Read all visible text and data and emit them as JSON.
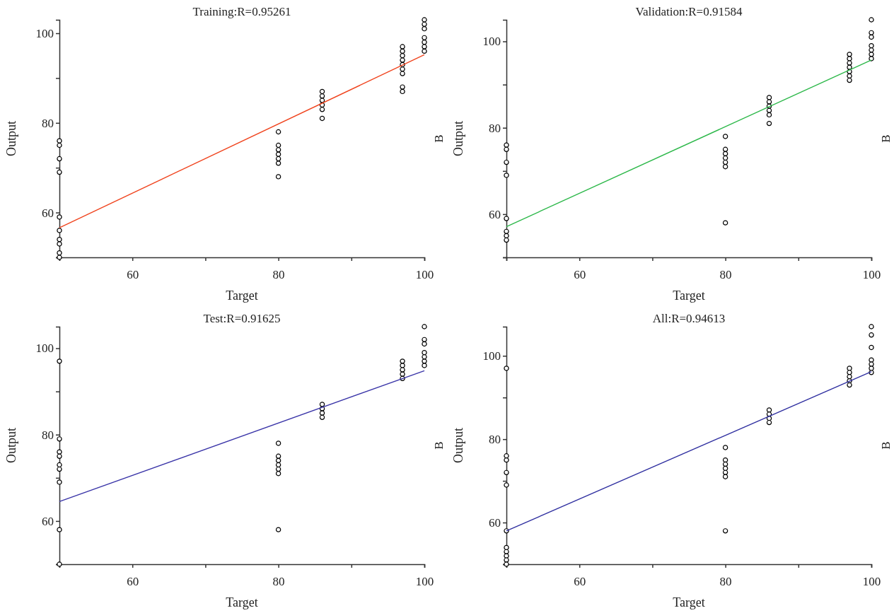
{
  "chart_data": [
    {
      "type": "scatter",
      "title": "Training:R=0.95261",
      "xlabel": "Target",
      "ylabel": "Output",
      "annotations": [
        "B"
      ],
      "xlim": [
        50,
        100
      ],
      "xticks": [
        {
          "value": 50,
          "label": null
        },
        60,
        {
          "value": 70,
          "label": null
        },
        80,
        {
          "value": 90,
          "label": null
        },
        100
      ],
      "ylim": [
        50,
        103
      ],
      "yticks": [
        {
          "value": 50,
          "label": null
        },
        60,
        {
          "value": 70,
          "label": null
        },
        80,
        {
          "value": 90,
          "label": null
        },
        100
      ],
      "series": [
        {
          "marker": "circle",
          "color": "#000000",
          "x": [
            50,
            50,
            50,
            50,
            50,
            50,
            50,
            50,
            50,
            50,
            80,
            80,
            80,
            80,
            80,
            80,
            80,
            86,
            86,
            86,
            86,
            86,
            86,
            97,
            97,
            97,
            97,
            97,
            97,
            97,
            97,
            97,
            100,
            100,
            100,
            100,
            100,
            100,
            100
          ],
          "values": [
            76,
            75,
            72,
            69,
            59,
            56,
            54,
            53,
            51,
            50,
            78,
            75,
            74,
            73,
            72,
            71,
            68,
            87,
            86,
            85,
            84,
            83,
            81,
            97,
            96,
            95,
            94,
            93,
            92,
            91,
            88,
            87,
            103,
            102,
            101,
            99,
            98,
            97,
            96
          ]
        },
        {
          "type": "line",
          "marker": "none",
          "color": "#f0441e",
          "x": [
            50,
            100
          ],
          "values": [
            56.6,
            95.2
          ]
        }
      ]
    },
    {
      "type": "scatter",
      "title": "Validation:R=0.91584",
      "xlabel": "Target",
      "ylabel": "Output",
      "annotations": [
        "B"
      ],
      "xlim": [
        50,
        100
      ],
      "xticks": [
        {
          "value": 50,
          "label": null
        },
        60,
        {
          "value": 70,
          "label": null
        },
        80,
        {
          "value": 90,
          "label": null
        },
        100
      ],
      "ylim": [
        50,
        105
      ],
      "yticks": [
        {
          "value": 50,
          "label": null
        },
        60,
        {
          "value": 70,
          "label": null
        },
        80,
        {
          "value": 90,
          "label": null
        },
        100
      ],
      "series": [
        {
          "marker": "circle",
          "color": "#000000",
          "x": [
            50,
            50,
            50,
            50,
            50,
            50,
            50,
            50,
            80,
            80,
            80,
            80,
            80,
            80,
            80,
            86,
            86,
            86,
            86,
            86,
            86,
            97,
            97,
            97,
            97,
            97,
            97,
            97,
            100,
            100,
            100,
            100,
            100,
            100,
            100
          ],
          "values": [
            76,
            75,
            72,
            69,
            59,
            56,
            55,
            54,
            78,
            75,
            74,
            73,
            72,
            71,
            58,
            87,
            86,
            85,
            84,
            83,
            81,
            97,
            96,
            95,
            94,
            93,
            92,
            91,
            105,
            102,
            101,
            99,
            98,
            97,
            96
          ]
        },
        {
          "type": "line",
          "marker": "none",
          "color": "#2db84a",
          "x": [
            50,
            100
          ],
          "values": [
            57.1,
            95.7
          ]
        }
      ]
    },
    {
      "type": "scatter",
      "title": "Test:R=0.91625",
      "xlabel": "Target",
      "ylabel": "Output",
      "annotations": [
        "B"
      ],
      "xlim": [
        50,
        100
      ],
      "xticks": [
        {
          "value": 50,
          "label": null
        },
        60,
        {
          "value": 70,
          "label": null
        },
        80,
        {
          "value": 90,
          "label": null
        },
        100
      ],
      "ylim": [
        50,
        105
      ],
      "yticks": [
        {
          "value": 50,
          "label": null
        },
        60,
        {
          "value": 70,
          "label": null
        },
        80,
        {
          "value": 90,
          "label": null
        },
        100
      ],
      "series": [
        {
          "marker": "circle",
          "color": "#000000",
          "x": [
            50,
            50,
            50,
            50,
            50,
            50,
            50,
            50,
            50,
            80,
            80,
            80,
            80,
            80,
            80,
            80,
            86,
            86,
            86,
            86,
            97,
            97,
            97,
            97,
            97,
            100,
            100,
            100,
            100,
            100,
            100,
            100
          ],
          "values": [
            97,
            79,
            76,
            75,
            73,
            72,
            69,
            58,
            50,
            78,
            75,
            74,
            73,
            72,
            71,
            58,
            87,
            86,
            85,
            84,
            97,
            96,
            95,
            94,
            93,
            105,
            102,
            101,
            99,
            98,
            97,
            96
          ]
        },
        {
          "type": "line",
          "marker": "none",
          "color": "#3a35a8",
          "x": [
            50,
            100
          ],
          "values": [
            64.5,
            94.8
          ]
        }
      ]
    },
    {
      "type": "scatter",
      "title": "All:R=0.94613",
      "xlabel": "Target",
      "ylabel": "Output",
      "annotations": [
        "B"
      ],
      "xlim": [
        50,
        100
      ],
      "xticks": [
        {
          "value": 50,
          "label": null
        },
        60,
        {
          "value": 70,
          "label": null
        },
        80,
        {
          "value": 90,
          "label": null
        },
        100
      ],
      "ylim": [
        50,
        107
      ],
      "yticks": [
        {
          "value": 50,
          "label": null
        },
        60,
        {
          "value": 70,
          "label": null
        },
        80,
        {
          "value": 90,
          "label": null
        },
        100
      ],
      "series": [
        {
          "marker": "circle",
          "color": "#000000",
          "x": [
            50,
            50,
            50,
            50,
            50,
            50,
            50,
            50,
            50,
            50,
            50,
            80,
            80,
            80,
            80,
            80,
            80,
            80,
            86,
            86,
            86,
            86,
            97,
            97,
            97,
            97,
            97,
            100,
            100,
            100,
            100,
            100,
            100,
            100
          ],
          "values": [
            97,
            76,
            75,
            72,
            69,
            58,
            54,
            53,
            52,
            51,
            50,
            78,
            75,
            74,
            73,
            72,
            71,
            58,
            87,
            86,
            85,
            84,
            97,
            96,
            95,
            94,
            93,
            107,
            105,
            102,
            99,
            98,
            97,
            96
          ]
        },
        {
          "type": "line",
          "marker": "none",
          "color": "#2f2fa0",
          "x": [
            50,
            100
          ],
          "values": [
            58.0,
            96.2
          ]
        }
      ]
    }
  ]
}
